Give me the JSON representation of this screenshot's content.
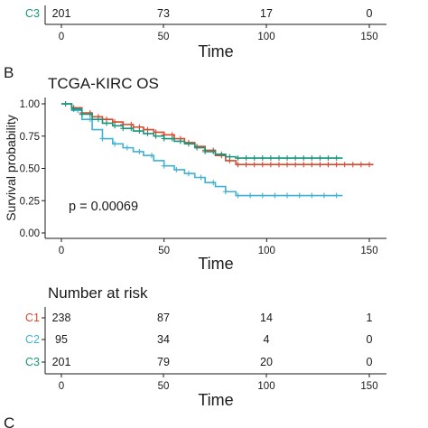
{
  "colors": {
    "C1": "#d9492e",
    "C2": "#3fb1d2",
    "C3": "#1a9579"
  },
  "top_fragment": {
    "group": "C3",
    "risk": [
      "201",
      "73",
      "17",
      "0"
    ],
    "xticks": [
      "0",
      "50",
      "100",
      "150"
    ],
    "xlabel": "Time"
  },
  "panel_b": {
    "letter": "B",
    "risk_title": "Number at risk",
    "risk_rows": [
      {
        "group": "C1",
        "values": [
          "238",
          "87",
          "14",
          "1"
        ]
      },
      {
        "group": "C2",
        "values": [
          "95",
          "34",
          "4",
          "0"
        ]
      },
      {
        "group": "C3",
        "values": [
          "201",
          "79",
          "20",
          "0"
        ]
      }
    ],
    "risk_xticks": [
      "0",
      "50",
      "100",
      "150"
    ],
    "risk_xlabel": "Time"
  },
  "panel_c": {
    "letter": "C"
  },
  "chart_data": {
    "type": "line",
    "title": "TCGA-KIRC OS",
    "xlabel": "Time",
    "ylabel": "Survival probability",
    "xlim": [
      0,
      155
    ],
    "ylim": [
      0,
      1
    ],
    "xticks": [
      "0",
      "50",
      "100",
      "150"
    ],
    "yticks": [
      "0.00",
      "0.25",
      "0.50",
      "0.75",
      "1.00"
    ],
    "annotation": "p = 0.00069",
    "grid": false,
    "series": [
      {
        "name": "C1",
        "color": "#d9492e",
        "points": [
          [
            0,
            1.0
          ],
          [
            5,
            0.97
          ],
          [
            10,
            0.93
          ],
          [
            15,
            0.9
          ],
          [
            20,
            0.88
          ],
          [
            25,
            0.86
          ],
          [
            30,
            0.84
          ],
          [
            35,
            0.82
          ],
          [
            40,
            0.8
          ],
          [
            45,
            0.78
          ],
          [
            50,
            0.76
          ],
          [
            55,
            0.73
          ],
          [
            60,
            0.7
          ],
          [
            65,
            0.67
          ],
          [
            70,
            0.64
          ],
          [
            75,
            0.6
          ],
          [
            80,
            0.56
          ],
          [
            85,
            0.53
          ],
          [
            100,
            0.53
          ],
          [
            120,
            0.53
          ],
          [
            152,
            0.53
          ]
        ]
      },
      {
        "name": "C2",
        "color": "#3fb1d2",
        "points": [
          [
            0,
            1.0
          ],
          [
            5,
            0.95
          ],
          [
            10,
            0.88
          ],
          [
            15,
            0.8
          ],
          [
            20,
            0.73
          ],
          [
            25,
            0.69
          ],
          [
            30,
            0.66
          ],
          [
            35,
            0.63
          ],
          [
            40,
            0.6
          ],
          [
            45,
            0.56
          ],
          [
            50,
            0.52
          ],
          [
            55,
            0.49
          ],
          [
            60,
            0.46
          ],
          [
            65,
            0.43
          ],
          [
            70,
            0.39
          ],
          [
            75,
            0.36
          ],
          [
            80,
            0.32
          ],
          [
            85,
            0.29
          ],
          [
            100,
            0.29
          ],
          [
            120,
            0.29
          ],
          [
            137,
            0.29
          ]
        ]
      },
      {
        "name": "C3",
        "color": "#1a9579",
        "points": [
          [
            0,
            1.0
          ],
          [
            5,
            0.96
          ],
          [
            10,
            0.92
          ],
          [
            15,
            0.88
          ],
          [
            20,
            0.85
          ],
          [
            25,
            0.83
          ],
          [
            30,
            0.81
          ],
          [
            35,
            0.79
          ],
          [
            40,
            0.77
          ],
          [
            45,
            0.75
          ],
          [
            50,
            0.73
          ],
          [
            55,
            0.71
          ],
          [
            60,
            0.69
          ],
          [
            65,
            0.66
          ],
          [
            70,
            0.63
          ],
          [
            75,
            0.61
          ],
          [
            80,
            0.59
          ],
          [
            85,
            0.58
          ],
          [
            100,
            0.58
          ],
          [
            120,
            0.58
          ],
          [
            137,
            0.58
          ]
        ]
      }
    ]
  }
}
